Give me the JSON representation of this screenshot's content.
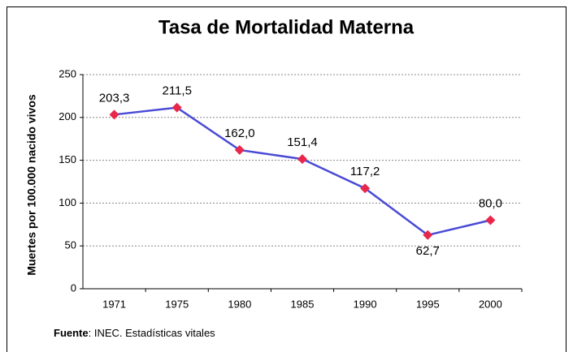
{
  "chart_data": {
    "type": "line",
    "title": "Tasa de Mortalidad Materna",
    "y_label": "Muertes por 100.000 nacido vivos",
    "categories": [
      "1971",
      "1975",
      "1980",
      "1985",
      "1990",
      "1995",
      "2000"
    ],
    "series": [
      {
        "name": "Tasa de Mortalidad Materna",
        "color": "#4a4ad6",
        "marker_color": "#e8274b",
        "values": [
          203.3,
          211.5,
          162.0,
          151.4,
          117.2,
          62.7,
          80.0
        ],
        "value_labels": [
          "203,3",
          "211,5",
          "162,0",
          "151,4",
          "117,2",
          "62,7",
          "80,0"
        ],
        "label_positions": [
          "above",
          "above",
          "above",
          "above",
          "above",
          "below",
          "above"
        ]
      }
    ],
    "ylim": [
      0,
      250
    ],
    "yticks": [
      0,
      50,
      100,
      150,
      200,
      250
    ],
    "grid": true,
    "source_label": "Fuente",
    "source_text": ": INEC. Estadísticas vitales"
  }
}
